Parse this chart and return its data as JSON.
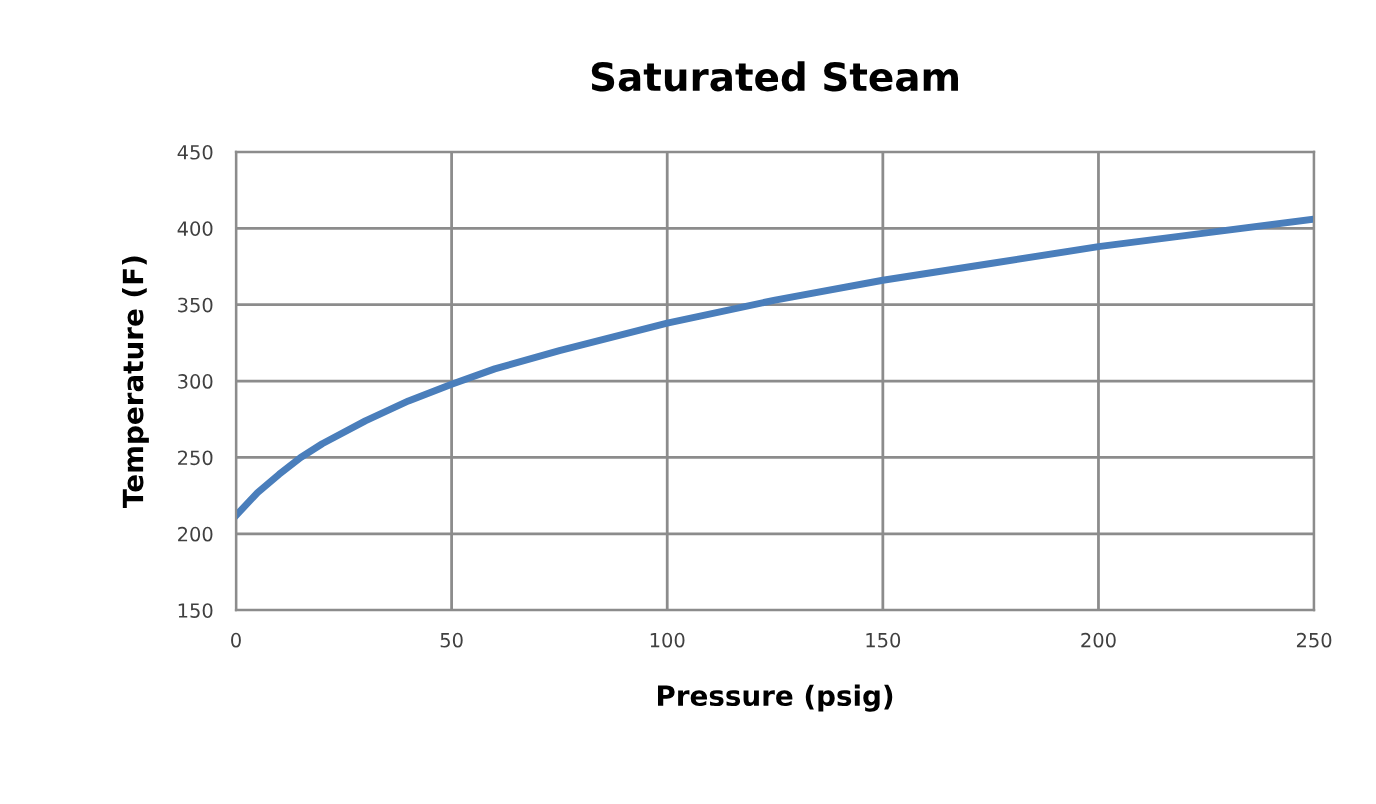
{
  "chart_data": {
    "type": "line",
    "title": "Saturated Steam",
    "xlabel": "Pressure (psig)",
    "ylabel": "Temperature (F)",
    "x": [
      0,
      5,
      10,
      15,
      20,
      30,
      40,
      50,
      60,
      75,
      100,
      125,
      150,
      175,
      200,
      225,
      250
    ],
    "series": [
      {
        "color": "#4a7ebb",
        "values": [
          212,
          227,
          239,
          250,
          259,
          274,
          287,
          298,
          308,
          320,
          338,
          353,
          366,
          377,
          388,
          397,
          406
        ]
      }
    ],
    "xlim": [
      0,
      250
    ],
    "xticks": [
      0,
      50,
      100,
      150,
      200,
      250
    ],
    "ylim": [
      150,
      450
    ],
    "yticks": [
      150,
      200,
      250,
      300,
      350,
      400,
      450
    ],
    "grid": true,
    "legend": false,
    "marker": "none",
    "line_style": "solid"
  }
}
